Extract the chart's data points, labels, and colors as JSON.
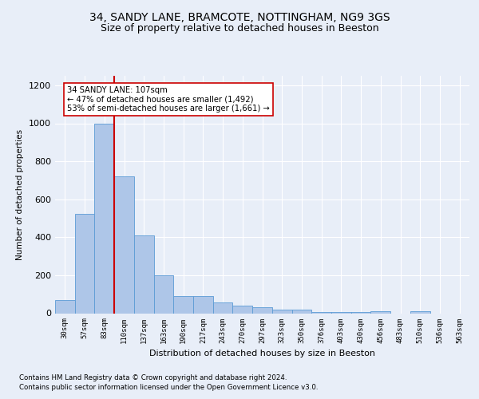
{
  "title1": "34, SANDY LANE, BRAMCOTE, NOTTINGHAM, NG9 3GS",
  "title2": "Size of property relative to detached houses in Beeston",
  "xlabel": "Distribution of detached houses by size in Beeston",
  "ylabel": "Number of detached properties",
  "categories": [
    "30sqm",
    "57sqm",
    "83sqm",
    "110sqm",
    "137sqm",
    "163sqm",
    "190sqm",
    "217sqm",
    "243sqm",
    "270sqm",
    "297sqm",
    "323sqm",
    "350sqm",
    "376sqm",
    "403sqm",
    "430sqm",
    "456sqm",
    "483sqm",
    "510sqm",
    "536sqm",
    "563sqm"
  ],
  "values": [
    70,
    525,
    1000,
    720,
    410,
    198,
    90,
    90,
    58,
    38,
    30,
    18,
    18,
    5,
    5,
    5,
    10,
    0,
    10,
    0,
    0
  ],
  "bar_color": "#aec6e8",
  "bar_edge_color": "#5b9bd5",
  "highlight_line_index": 3,
  "highlight_line_color": "#cc0000",
  "annotation_text": "34 SANDY LANE: 107sqm\n← 47% of detached houses are smaller (1,492)\n53% of semi-detached houses are larger (1,661) →",
  "annotation_box_color": "#ffffff",
  "annotation_box_edge": "#cc0000",
  "ylim": [
    0,
    1250
  ],
  "yticks": [
    0,
    200,
    400,
    600,
    800,
    1000,
    1200
  ],
  "footer1": "Contains HM Land Registry data © Crown copyright and database right 2024.",
  "footer2": "Contains public sector information licensed under the Open Government Licence v3.0.",
  "bg_color": "#e8eef8",
  "plot_bg_color": "#e8eef8",
  "title_fontsize": 10,
  "subtitle_fontsize": 9
}
